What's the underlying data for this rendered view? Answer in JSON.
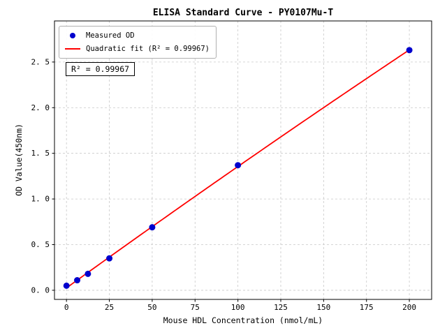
{
  "figure": {
    "title": "ELISA Standard Curve - PY0107Mu-T",
    "xlabel": "Mouse HDL Concentration (nmol/mL)",
    "ylabel": "OD Value(450nm)",
    "annotation": "R² = 0.99967",
    "legend": [
      {
        "marker": "dot",
        "color": "#0000cd",
        "label": "Measured OD"
      },
      {
        "marker": "line",
        "color": "#ff0000",
        "label": "Quadratic fit (R² = 0.99967)"
      }
    ]
  },
  "chart_data": {
    "type": "scatter",
    "title": "ELISA Standard Curve - PY0107Mu-T",
    "xlabel": "Mouse HDL Concentration (nmol/mL)",
    "ylabel": "OD Value(450nm)",
    "series": [
      {
        "name": "Measured OD",
        "x": [
          0,
          6.25,
          12.5,
          25,
          50,
          100,
          200
        ],
        "y": [
          0.05,
          0.11,
          0.18,
          0.35,
          0.69,
          1.37,
          2.63
        ]
      }
    ],
    "fit": {
      "type": "quadratic",
      "label": "Quadratic fit (R² = 0.99967)",
      "r_squared": 0.99967
    },
    "xticks": [
      0,
      25,
      50,
      75,
      100,
      125,
      150,
      175,
      200
    ],
    "xtick_labels": [
      "0",
      "25",
      "50",
      "75",
      "100",
      "125",
      "150",
      "175",
      "200"
    ],
    "yticks": [
      0.0,
      0.5,
      1.0,
      1.5,
      2.0,
      2.5
    ],
    "ytick_labels": [
      "0. 0",
      "0. 5",
      "1. 0",
      "1. 5",
      "2. 0",
      "2. 5"
    ],
    "xlim": [
      -7,
      213
    ],
    "ylim": [
      -0.1,
      2.95
    ],
    "grid": true,
    "legend_position": "upper left",
    "colors": {
      "points": "#0000cd",
      "fit_line": "#ff0000",
      "grid": "#c8c8c8",
      "axes": "#000000"
    }
  }
}
